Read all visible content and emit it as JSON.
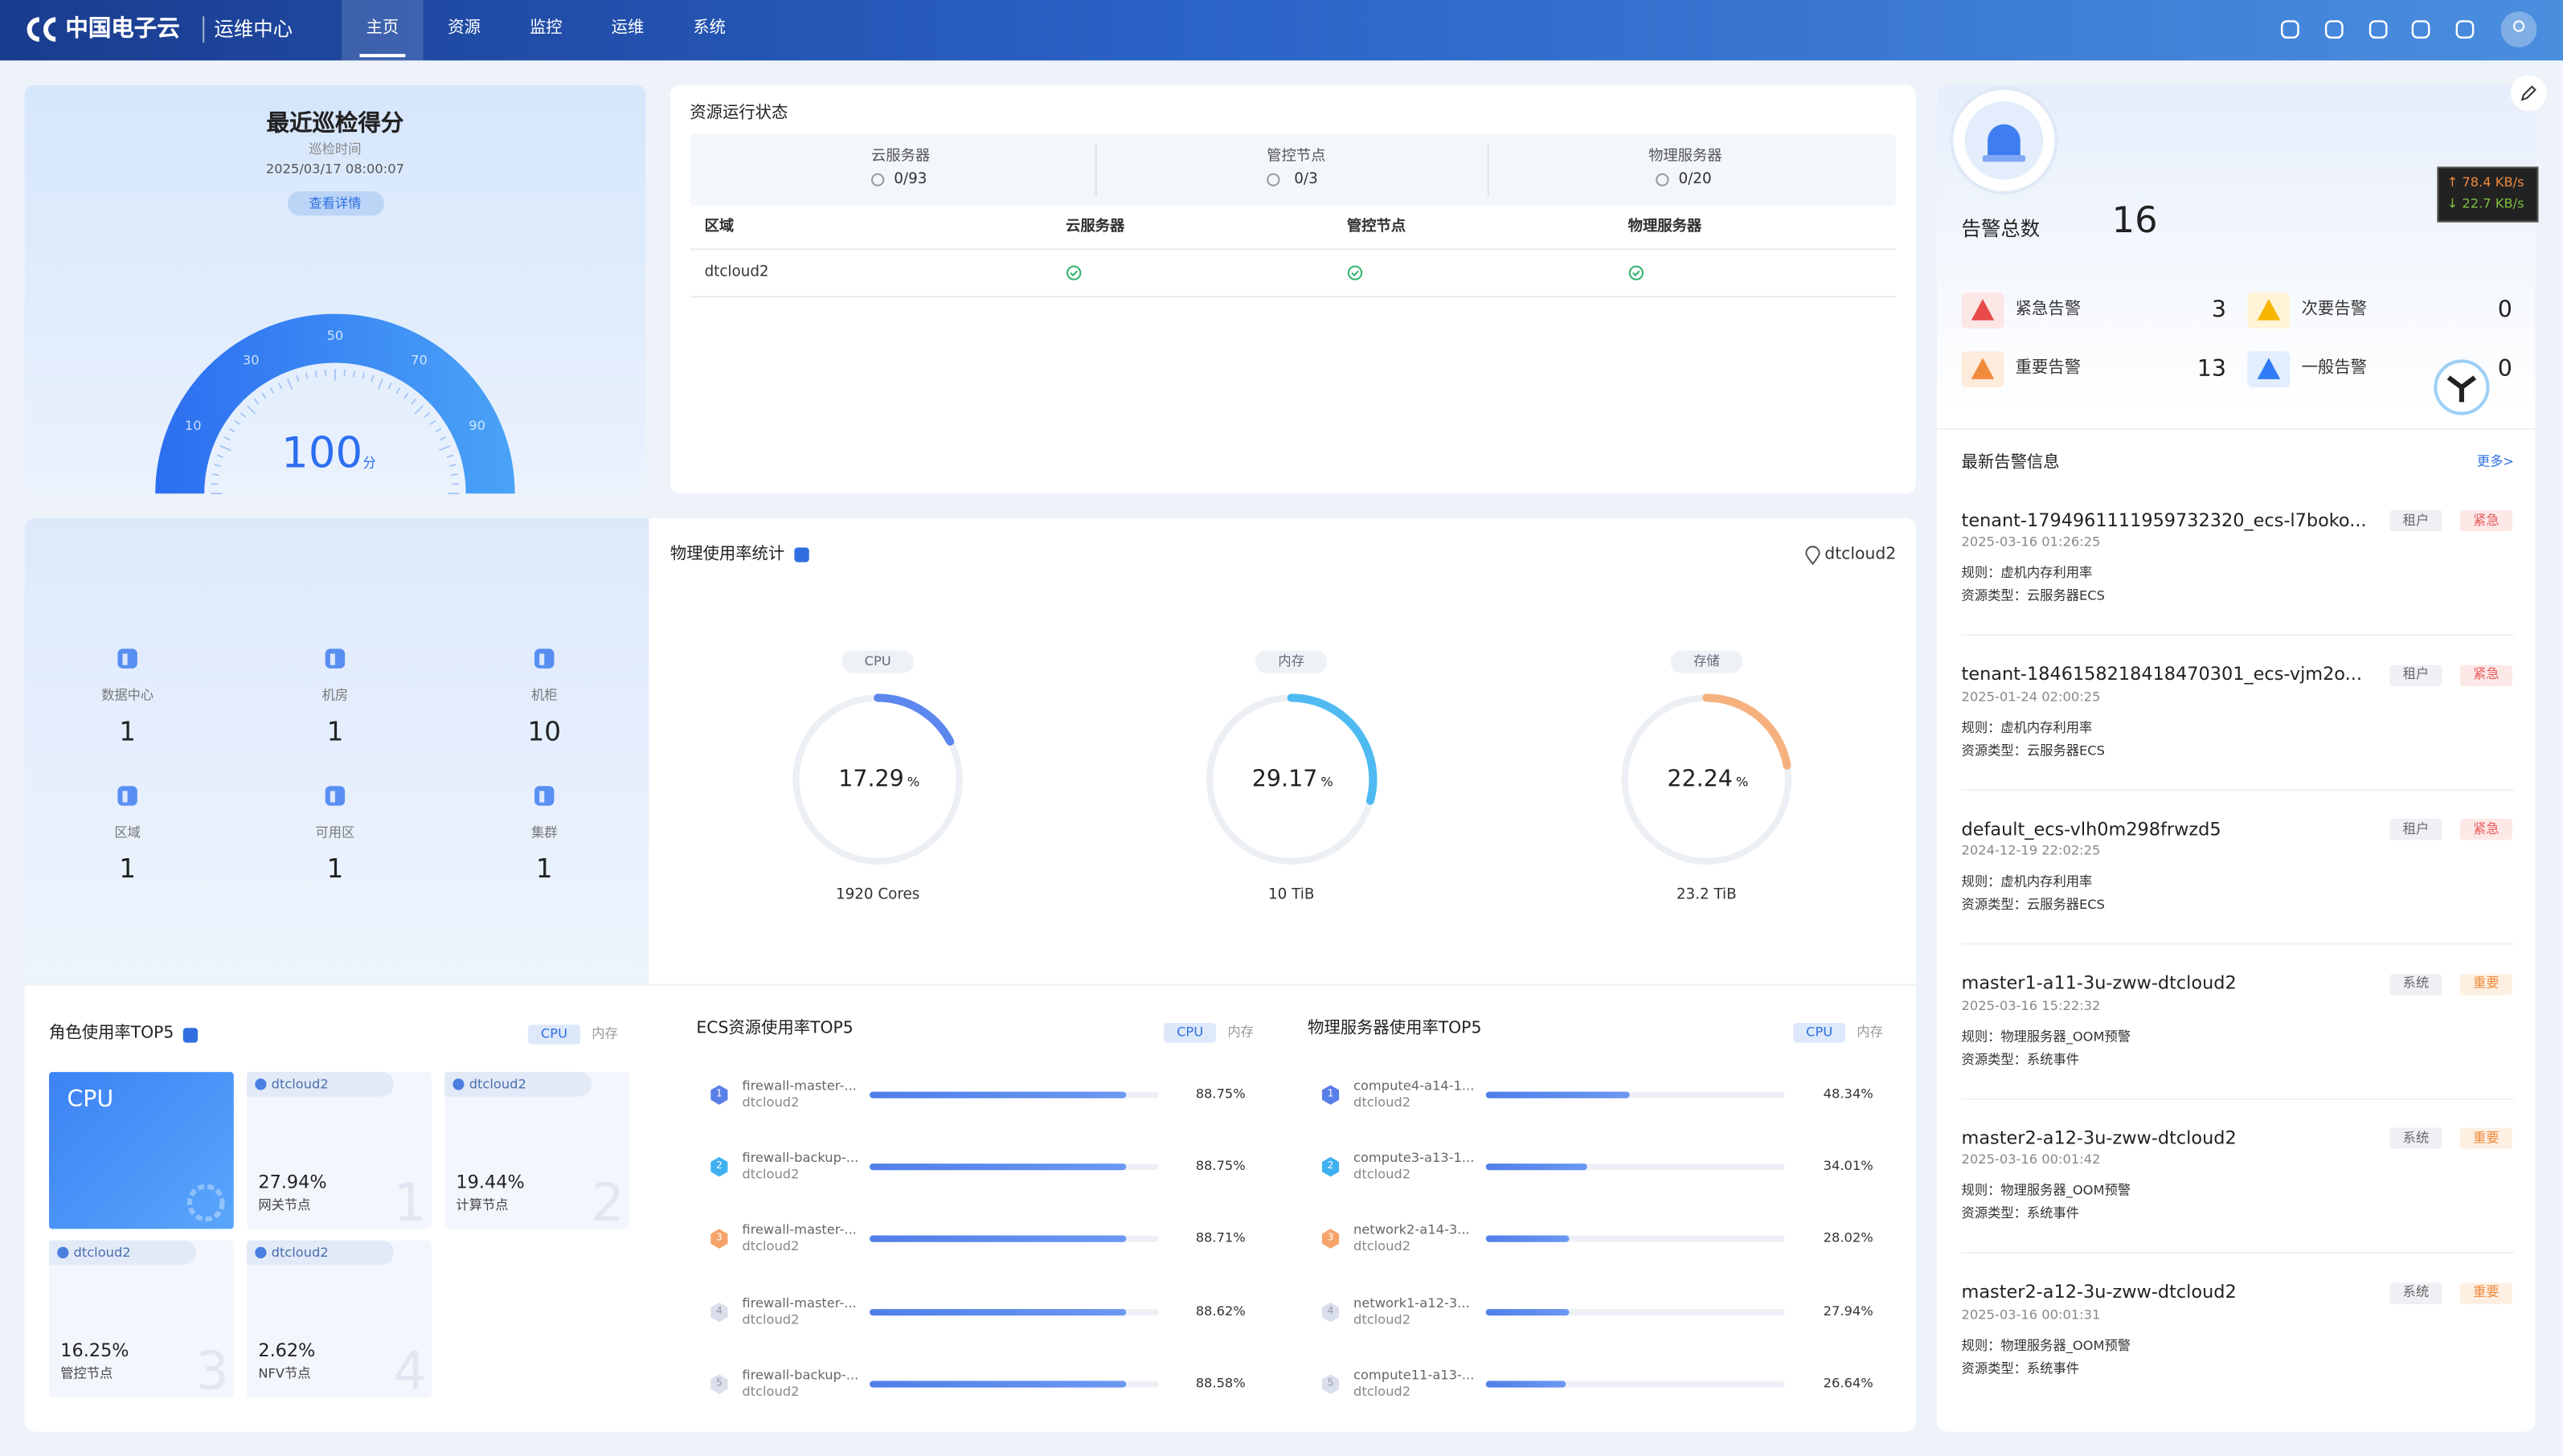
{
  "header": {
    "logo": "中国电子云",
    "product": "运维中心",
    "nav": [
      "主页",
      "资源",
      "监控",
      "运维",
      "系统"
    ]
  },
  "inspection": {
    "title": "最近巡检得分",
    "time_label": "巡检时间",
    "time": "2025/03/17 08:00:07",
    "button": "查看详情",
    "score": 100,
    "unit": "分",
    "scale": [
      10,
      30,
      50,
      70,
      90
    ]
  },
  "resource_status": {
    "title": "资源运行状态",
    "summary": [
      {
        "name": "云服务器",
        "value": "0/93"
      },
      {
        "name": "管控节点",
        "value": "0/3"
      },
      {
        "name": "物理服务器",
        "value": "0/20"
      }
    ],
    "columns": [
      "区域",
      "云服务器",
      "管控节点",
      "物理服务器"
    ],
    "rows": [
      [
        "dtcloud2"
      ]
    ]
  },
  "counts": [
    {
      "name": "数据中心",
      "value": 1
    },
    {
      "name": "机房",
      "value": 1
    },
    {
      "name": "机柜",
      "value": 10
    },
    {
      "name": "区域",
      "value": 1
    },
    {
      "name": "可用区",
      "value": 1
    },
    {
      "name": "集群",
      "value": 1
    }
  ],
  "physical": {
    "title": "物理使用率统计",
    "region": "dtcloud2",
    "rings": [
      {
        "name": "CPU",
        "value": 17.29,
        "unit": "%",
        "total": "1920 Cores"
      },
      {
        "name": "内存",
        "value": 29.17,
        "unit": "%",
        "total": "10 TiB"
      },
      {
        "name": "存储",
        "value": 22.24,
        "unit": "%",
        "total": "23.2 TiB"
      }
    ]
  },
  "roles": {
    "title": "角色使用率TOP5",
    "tabs": [
      "CPU",
      "内存"
    ],
    "highlight": "CPU",
    "items": [
      {
        "region": "dtcloud2",
        "value": "27.94%",
        "name": "网关节点",
        "rank": 1
      },
      {
        "region": "dtcloud2",
        "value": "19.44%",
        "name": "计算节点",
        "rank": 2
      },
      {
        "region": "dtcloud2",
        "value": "16.25%",
        "name": "管控节点",
        "rank": 3
      },
      {
        "region": "dtcloud2",
        "value": "2.62%",
        "name": "NFV节点",
        "rank": 4
      }
    ]
  },
  "ecs_top": {
    "title": "ECS资源使用率TOP5",
    "tabs": [
      "CPU",
      "内存"
    ],
    "items": [
      {
        "rank": 1,
        "name": "firewall-master-...",
        "region": "dtcloud2",
        "value": 88.75,
        "label": "88.75%"
      },
      {
        "rank": 2,
        "name": "firewall-backup-...",
        "region": "dtcloud2",
        "value": 88.75,
        "label": "88.75%"
      },
      {
        "rank": 3,
        "name": "firewall-master-...",
        "region": "dtcloud2",
        "value": 88.71,
        "label": "88.71%"
      },
      {
        "rank": 4,
        "name": "firewall-master-...",
        "region": "dtcloud2",
        "value": 88.62,
        "label": "88.62%"
      },
      {
        "rank": 5,
        "name": "firewall-backup-...",
        "region": "dtcloud2",
        "value": 88.58,
        "label": "88.58%"
      }
    ]
  },
  "phys_top": {
    "title": "物理服务器使用率TOP5",
    "tabs": [
      "CPU",
      "内存"
    ],
    "items": [
      {
        "rank": 1,
        "name": "compute4-a14-1...",
        "region": "dtcloud2",
        "value": 48.34,
        "label": "48.34%"
      },
      {
        "rank": 2,
        "name": "compute3-a13-1...",
        "region": "dtcloud2",
        "value": 34.01,
        "label": "34.01%"
      },
      {
        "rank": 3,
        "name": "network2-a14-3...",
        "region": "dtcloud2",
        "value": 28.02,
        "label": "28.02%"
      },
      {
        "rank": 4,
        "name": "network1-a12-3...",
        "region": "dtcloud2",
        "value": 27.94,
        "label": "27.94%"
      },
      {
        "rank": 5,
        "name": "compute11-a13-...",
        "region": "dtcloud2",
        "value": 26.64,
        "label": "26.64%"
      }
    ]
  },
  "alarms": {
    "title": "告警总数",
    "total": 16,
    "network": {
      "up": "↑ 78.4 KB/s",
      "down": "↓ 22.7 KB/s"
    },
    "levels": [
      {
        "name": "紧急告警",
        "count": 3
      },
      {
        "name": "次要告警",
        "count": 0
      },
      {
        "name": "重要告警",
        "count": 13
      },
      {
        "name": "一般告警",
        "count": 0
      }
    ],
    "latest_title": "最新告警信息",
    "more": "更多>",
    "items": [
      {
        "name": "tenant-1794961111959732320_ecs-l7boko...",
        "time": "2025-03-16 01:26:25",
        "rule": "规则：虚机内存利用率",
        "type": "资源类型：云服务器ECS",
        "tags": [
          "租户",
          "紧急"
        ]
      },
      {
        "name": "tenant-1846158218418470301_ecs-vjm2o...",
        "time": "2025-01-24 02:00:25",
        "rule": "规则：虚机内存利用率",
        "type": "资源类型：云服务器ECS",
        "tags": [
          "租户",
          "紧急"
        ]
      },
      {
        "name": "default_ecs-vlh0m298frwzd5",
        "time": "2024-12-19 22:02:25",
        "rule": "规则：虚机内存利用率",
        "type": "资源类型：云服务器ECS",
        "tags": [
          "租户",
          "紧急"
        ]
      },
      {
        "name": "master1-a11-3u-zww-dtcloud2",
        "time": "2025-03-16 15:22:32",
        "rule": "规则：物理服务器_OOM预警",
        "type": "资源类型：系统事件",
        "tags": [
          "系统",
          "重要"
        ]
      },
      {
        "name": "master2-a12-3u-zww-dtcloud2",
        "time": "2025-03-16 00:01:42",
        "rule": "规则：物理服务器_OOM预警",
        "type": "资源类型：系统事件",
        "tags": [
          "系统",
          "重要"
        ]
      },
      {
        "name": "master2-a12-3u-zww-dtcloud2",
        "time": "2025-03-16 00:01:31",
        "rule": "规则：物理服务器_OOM预警",
        "type": "资源类型：系统事件",
        "tags": [
          "系统",
          "重要"
        ]
      }
    ]
  }
}
